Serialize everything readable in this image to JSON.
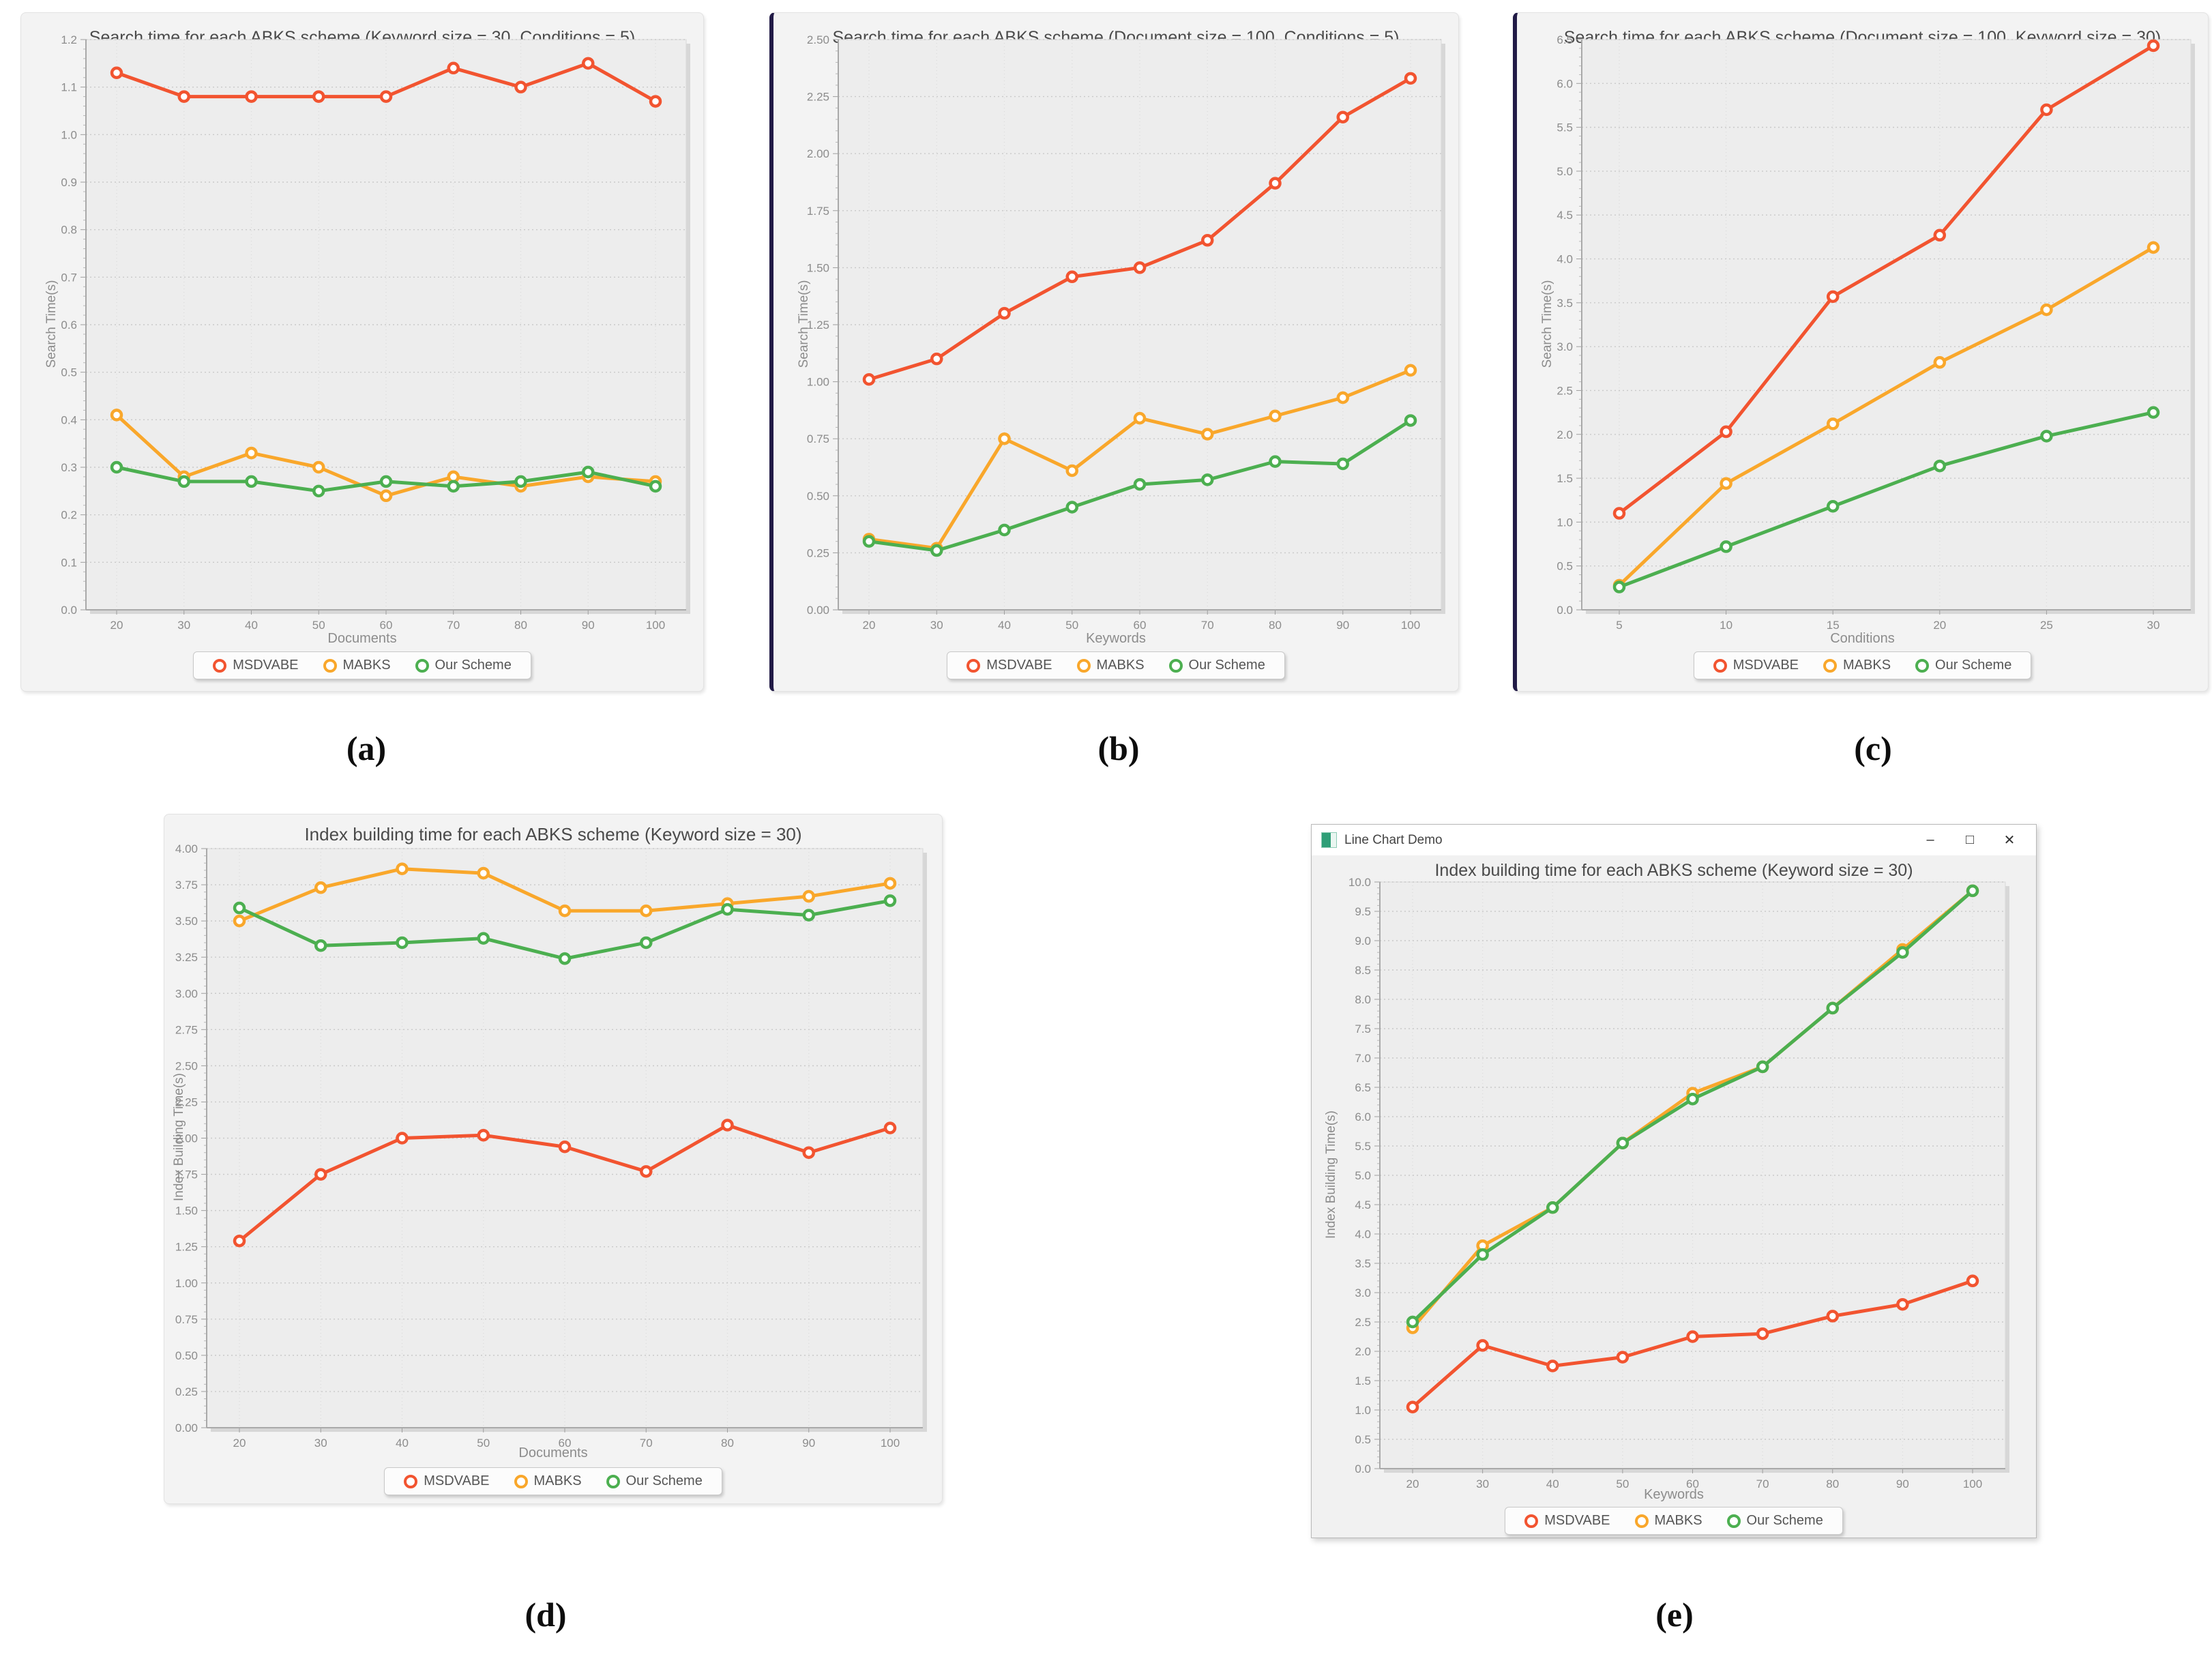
{
  "figure_labels": [
    "(a)",
    "(b)",
    "(c)",
    "(d)",
    "(e)"
  ],
  "window": {
    "title": "Line Chart Demo",
    "controls": {
      "minimize": "–",
      "maximize": "□",
      "close": "✕"
    }
  },
  "colors": {
    "msdvabe": "#f25430",
    "mabks": "#f9a72b",
    "our_scheme": "#4caf50",
    "panel_left_border": "#211a46"
  },
  "chart_data": [
    {
      "type": "line",
      "title": "Search time for each ABKS scheme (Keyword size = 30, Conditions = 5)",
      "xlabel": "Documents",
      "ylabel": "Search Time(s)",
      "categories": [
        20,
        30,
        40,
        50,
        60,
        70,
        80,
        90,
        100
      ],
      "x_tick_labels": [
        "20",
        "30",
        "40",
        "50",
        "60",
        "70",
        "80",
        "90",
        "100"
      ],
      "ylim": [
        0,
        1.2
      ],
      "y_tick_labels": [
        "0.0",
        "0.1",
        "0.2",
        "0.3",
        "0.4",
        "0.5",
        "0.6",
        "0.7",
        "0.8",
        "0.9",
        "1.0",
        "1.1",
        "1.2"
      ],
      "grid": true,
      "legend_position": "bottom",
      "series": [
        {
          "name": "MSDVABE",
          "color": "#f25430",
          "values": [
            1.13,
            1.08,
            1.08,
            1.08,
            1.08,
            1.14,
            1.1,
            1.15,
            1.07
          ]
        },
        {
          "name": "MABKS",
          "color": "#f9a72b",
          "values": [
            0.41,
            0.28,
            0.33,
            0.3,
            0.24,
            0.28,
            0.26,
            0.28,
            0.27
          ]
        },
        {
          "name": "Our Scheme",
          "color": "#4caf50",
          "values": [
            0.3,
            0.27,
            0.27,
            0.25,
            0.27,
            0.26,
            0.27,
            0.29,
            0.26
          ]
        }
      ]
    },
    {
      "type": "line",
      "title": "Search time for each ABKS scheme (Document size = 100, Conditions = 5)",
      "xlabel": "Keywords",
      "ylabel": "Search Time(s)",
      "categories": [
        20,
        30,
        40,
        50,
        60,
        70,
        80,
        90,
        100
      ],
      "x_tick_labels": [
        "20",
        "30",
        "40",
        "50",
        "60",
        "70",
        "80",
        "90",
        "100"
      ],
      "ylim": [
        0,
        2.5
      ],
      "y_tick_labels": [
        "0.00",
        "0.25",
        "0.50",
        "0.75",
        "1.00",
        "1.25",
        "1.50",
        "1.75",
        "2.00",
        "2.25",
        "2.50"
      ],
      "grid": true,
      "legend_position": "bottom",
      "series": [
        {
          "name": "MSDVABE",
          "color": "#f25430",
          "values": [
            1.01,
            1.1,
            1.3,
            1.46,
            1.5,
            1.62,
            1.87,
            2.16,
            2.33
          ]
        },
        {
          "name": "MABKS",
          "color": "#f9a72b",
          "values": [
            0.31,
            0.27,
            0.75,
            0.61,
            0.84,
            0.77,
            0.85,
            0.93,
            1.05
          ]
        },
        {
          "name": "Our Scheme",
          "color": "#4caf50",
          "values": [
            0.3,
            0.26,
            0.35,
            0.45,
            0.55,
            0.57,
            0.65,
            0.64,
            0.83
          ]
        }
      ]
    },
    {
      "type": "line",
      "title": "Search time for each ABKS scheme (Document size = 100, Keyword size = 30)",
      "xlabel": "Conditions",
      "ylabel": "Search Time(s)",
      "categories": [
        5,
        10,
        15,
        20,
        25,
        30
      ],
      "x_tick_labels": [
        "5",
        "10",
        "15",
        "20",
        "25",
        "30"
      ],
      "ylim": [
        0,
        6.5
      ],
      "y_tick_labels": [
        "0.0",
        "0.5",
        "1.0",
        "1.5",
        "2.0",
        "2.5",
        "3.0",
        "3.5",
        "4.0",
        "4.5",
        "5.0",
        "5.5",
        "6.0",
        "6.5"
      ],
      "grid": true,
      "legend_position": "bottom",
      "series": [
        {
          "name": "MSDVABE",
          "color": "#f25430",
          "values": [
            1.1,
            2.03,
            3.57,
            4.27,
            5.7,
            6.43
          ]
        },
        {
          "name": "MABKS",
          "color": "#f9a72b",
          "values": [
            0.28,
            1.44,
            2.12,
            2.82,
            3.42,
            4.13
          ]
        },
        {
          "name": "Our Scheme",
          "color": "#4caf50",
          "values": [
            0.26,
            0.72,
            1.18,
            1.64,
            1.98,
            2.25
          ]
        }
      ]
    },
    {
      "type": "line",
      "title": "Index building time for each ABKS scheme (Keyword size = 30)",
      "xlabel": "Documents",
      "ylabel": "Index Building Time(s)",
      "categories": [
        20,
        30,
        40,
        50,
        60,
        70,
        80,
        90,
        100
      ],
      "x_tick_labels": [
        "20",
        "30",
        "40",
        "50",
        "60",
        "70",
        "80",
        "90",
        "100"
      ],
      "ylim": [
        0,
        4.0
      ],
      "y_tick_labels": [
        "0.00",
        "0.25",
        "0.50",
        "0.75",
        "1.00",
        "1.25",
        "1.50",
        "1.75",
        "2.00",
        "2.25",
        "2.50",
        "2.75",
        "3.00",
        "3.25",
        "3.50",
        "3.75",
        "4.00"
      ],
      "grid": true,
      "legend_position": "bottom",
      "series": [
        {
          "name": "MSDVABE",
          "color": "#f25430",
          "values": [
            1.29,
            1.75,
            2.0,
            2.02,
            1.94,
            1.77,
            2.09,
            1.9,
            2.07
          ]
        },
        {
          "name": "MABKS",
          "color": "#f9a72b",
          "values": [
            3.5,
            3.73,
            3.86,
            3.83,
            3.57,
            3.57,
            3.62,
            3.67,
            3.76
          ]
        },
        {
          "name": "Our Scheme",
          "color": "#4caf50",
          "values": [
            3.59,
            3.33,
            3.35,
            3.38,
            3.24,
            3.35,
            3.58,
            3.54,
            3.64
          ]
        }
      ]
    },
    {
      "type": "line",
      "title": "Index building time for each ABKS scheme (Keyword size = 30)",
      "xlabel": "Keywords",
      "ylabel": "Index Building Time(s)",
      "categories": [
        20,
        30,
        40,
        50,
        60,
        70,
        80,
        90,
        100
      ],
      "x_tick_labels": [
        "20",
        "30",
        "40",
        "50",
        "60",
        "70",
        "80",
        "90",
        "100"
      ],
      "ylim": [
        0,
        10.0
      ],
      "y_tick_labels": [
        "0.0",
        "0.5",
        "1.0",
        "1.5",
        "2.0",
        "2.5",
        "3.0",
        "3.5",
        "4.0",
        "4.5",
        "5.0",
        "5.5",
        "6.0",
        "6.5",
        "7.0",
        "7.5",
        "8.0",
        "8.5",
        "9.0",
        "9.5",
        "10.0"
      ],
      "grid": true,
      "legend_position": "bottom",
      "series": [
        {
          "name": "MSDVABE",
          "color": "#f25430",
          "values": [
            1.05,
            2.1,
            1.75,
            1.9,
            2.25,
            2.3,
            2.6,
            2.8,
            3.2
          ]
        },
        {
          "name": "MABKS",
          "color": "#f9a72b",
          "values": [
            2.4,
            3.8,
            4.45,
            5.55,
            6.4,
            6.85,
            7.85,
            8.85,
            9.85
          ]
        },
        {
          "name": "Our Scheme",
          "color": "#4caf50",
          "values": [
            2.5,
            3.65,
            4.45,
            5.55,
            6.3,
            6.85,
            7.85,
            8.8,
            9.85
          ]
        }
      ]
    }
  ]
}
